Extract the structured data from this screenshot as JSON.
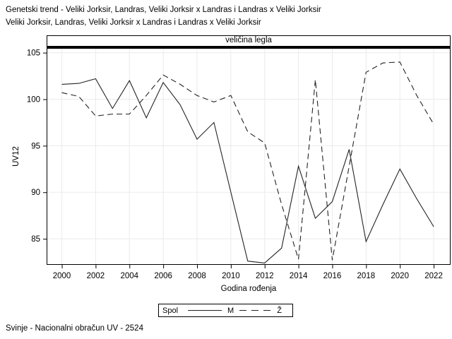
{
  "header": {
    "title_line1": "Genetski trend - Veliki Jorksir, Landras, Veliki Jorksir x Landras i Landras x Veliki Jorksir",
    "title_line2": "Veliki Jorksir, Landras, Veliki Jorksir x Landras i Landras x Veliki Jorksir"
  },
  "chart_data": {
    "type": "line",
    "title_band": "veličina legla",
    "xlabel": "Godina rođenja",
    "ylabel": "UV12",
    "legend_title": "Spol",
    "legend_position": "bottom",
    "grid": true,
    "x": [
      2000,
      2001,
      2002,
      2003,
      2004,
      2005,
      2006,
      2007,
      2008,
      2009,
      2010,
      2011,
      2012,
      2013,
      2014,
      2015,
      2016,
      2017,
      2018,
      2019,
      2020,
      2021,
      2022
    ],
    "series": [
      {
        "name": "M",
        "dash": "solid",
        "values": [
          101.6,
          101.7,
          102.2,
          99.0,
          102.0,
          98.0,
          101.8,
          99.4,
          95.7,
          97.5,
          90.0,
          82.6,
          82.4,
          84.0,
          92.8,
          87.2,
          89.0,
          94.6,
          84.7,
          88.7,
          92.5,
          89.3,
          86.3
        ]
      },
      {
        "name": "Ž",
        "dash": "dashed",
        "values": [
          100.7,
          100.3,
          98.2,
          98.4,
          98.4,
          100.4,
          102.6,
          101.6,
          100.4,
          99.7,
          100.4,
          96.5,
          95.3,
          88.7,
          82.8,
          102.1,
          82.7,
          92.8,
          102.9,
          103.9,
          104.0,
          100.4,
          97.3
        ]
      }
    ],
    "xticks": [
      2000,
      2002,
      2004,
      2006,
      2008,
      2010,
      2012,
      2014,
      2016,
      2018,
      2020,
      2022
    ],
    "yticks": [
      85,
      90,
      95,
      100,
      105
    ],
    "xlim": [
      1999.1,
      2023.0
    ],
    "ylim": [
      82.2,
      105.5
    ]
  },
  "footer": {
    "text": "Svinje - Nacionalni obračun UV - 2524"
  },
  "colors": {
    "line": "#232323",
    "grid": "#ebebeb",
    "frame": "#000000",
    "text": "#000000"
  }
}
